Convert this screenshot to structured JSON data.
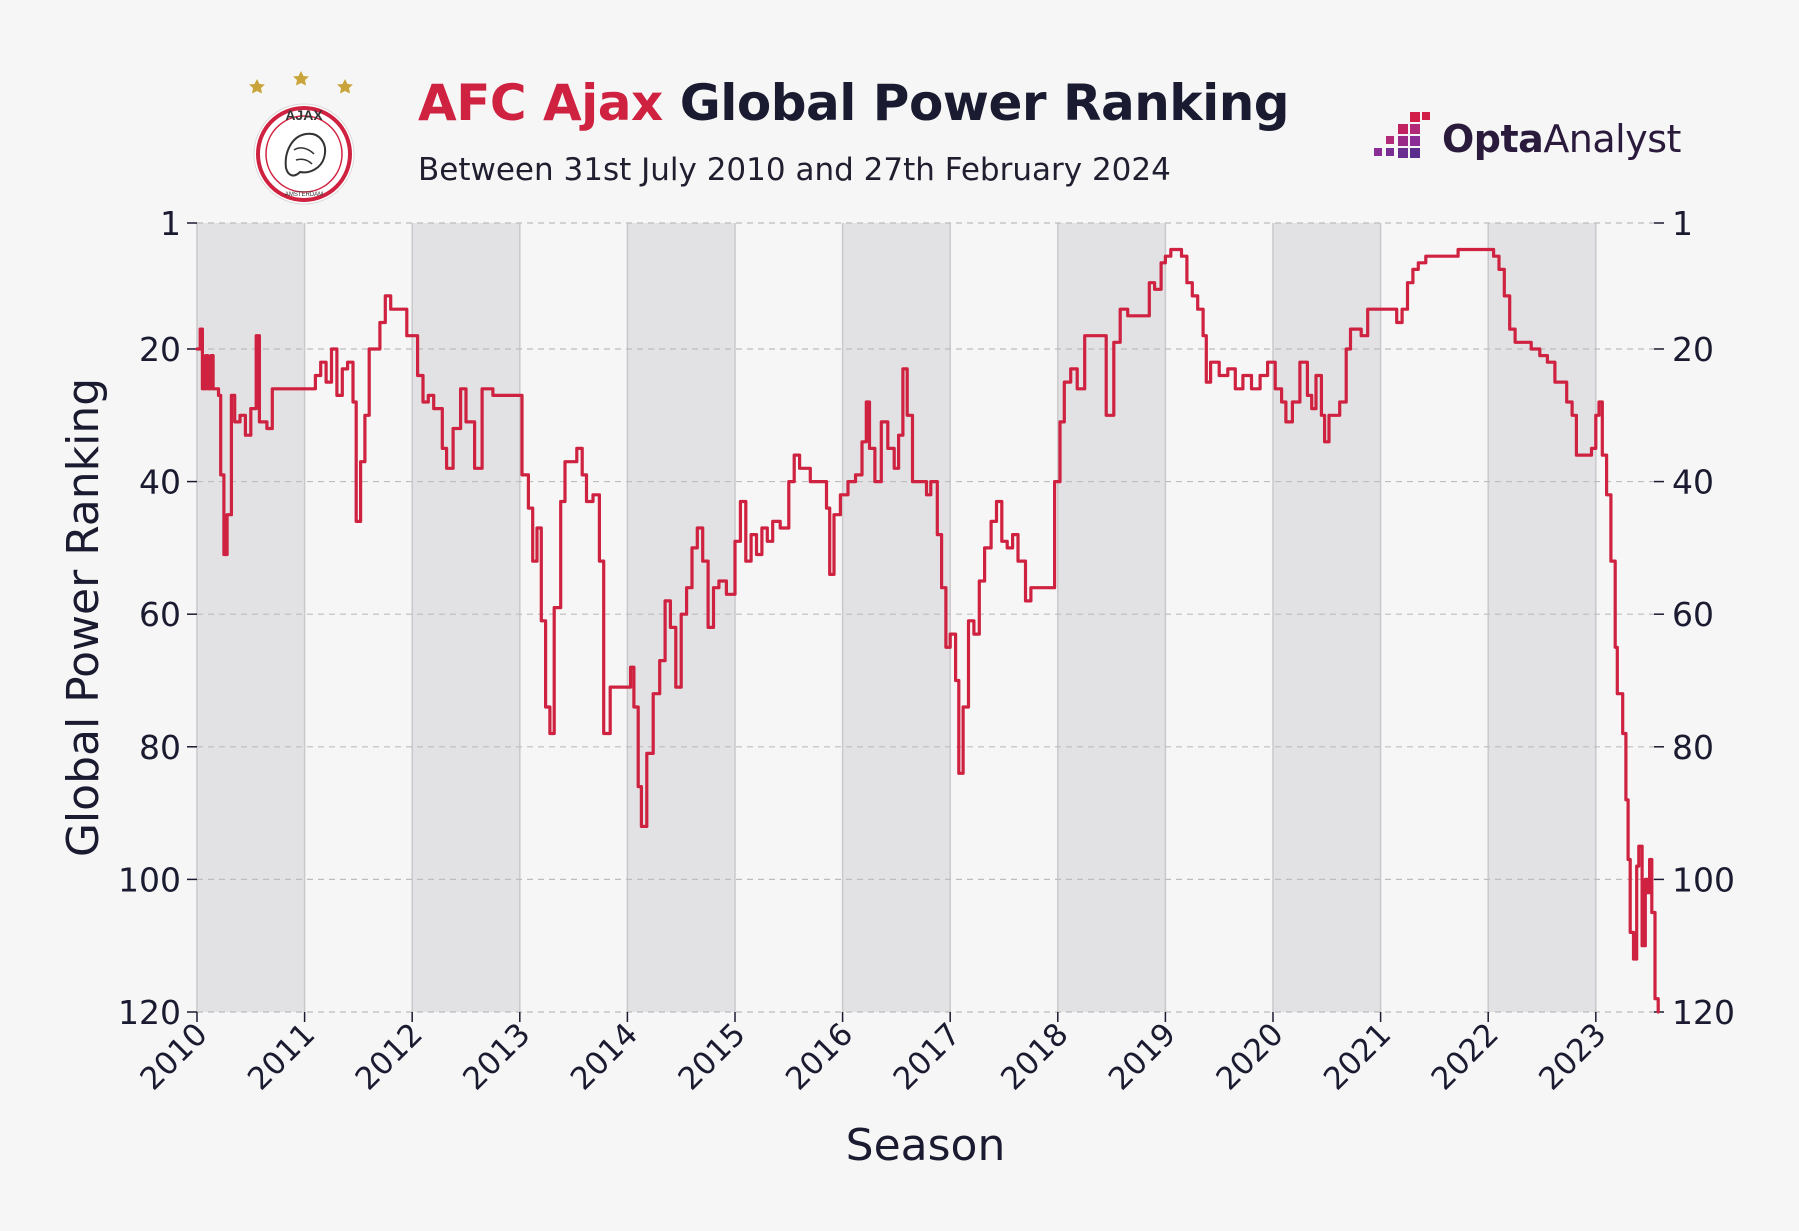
{
  "header": {
    "title_accent": "AFC Ajax",
    "title_rest": "Global Power Ranking",
    "subtitle": "Between 31st July 2010 and 27th February 2024"
  },
  "crest": {
    "name": "AJAX",
    "sub": "AMSTERDAM"
  },
  "brand": {
    "bold": "Opta",
    "light": "Analyst",
    "colors": [
      "#d11f4a",
      "#b02a78",
      "#8a2e96",
      "#5a2c8c"
    ]
  },
  "colors": {
    "line": "#cf2140",
    "band": "#e2e2e4",
    "text": "#1a1a30",
    "grid": "#bdbdbd",
    "background": "#f6f6f6"
  },
  "chart_data": {
    "type": "line",
    "title": "AFC Ajax Global Power Ranking",
    "subtitle": "Between 31st July 2010 and 27th February 2024",
    "xlabel": "Season",
    "ylabel": "Global Power Ranking",
    "xlim": [
      2010,
      2023.58
    ],
    "ylim": [
      120,
      1
    ],
    "y_inverted": true,
    "yticks": [
      1,
      20,
      40,
      60,
      80,
      100,
      120
    ],
    "ytick_labels": [
      "1",
      "20",
      "40",
      "60",
      "80",
      "100",
      "120"
    ],
    "xticks": [
      2010,
      2011,
      2012,
      2013,
      2014,
      2015,
      2016,
      2017,
      2018,
      2019,
      2020,
      2021,
      2022,
      2023
    ],
    "xtick_labels": [
      "2010",
      "2011",
      "2012",
      "2013",
      "2014",
      "2015",
      "2016",
      "2017",
      "2018",
      "2019",
      "2020",
      "2021",
      "2022",
      "2023"
    ],
    "shaded_seasons": [
      [
        2010,
        2011
      ],
      [
        2012,
        2013
      ],
      [
        2014,
        2015
      ],
      [
        2016,
        2017
      ],
      [
        2018,
        2019
      ],
      [
        2020,
        2021
      ],
      [
        2022,
        2023
      ]
    ],
    "grid": true,
    "series": [
      {
        "name": "AFC Ajax",
        "points": [
          [
            2010.0,
            20
          ],
          [
            2010.03,
            17
          ],
          [
            2010.05,
            26
          ],
          [
            2010.08,
            21
          ],
          [
            2010.1,
            26
          ],
          [
            2010.13,
            21
          ],
          [
            2010.15,
            26
          ],
          [
            2010.2,
            27
          ],
          [
            2010.22,
            39
          ],
          [
            2010.25,
            51
          ],
          [
            2010.28,
            45
          ],
          [
            2010.32,
            27
          ],
          [
            2010.35,
            31
          ],
          [
            2010.4,
            30
          ],
          [
            2010.45,
            33
          ],
          [
            2010.5,
            29
          ],
          [
            2010.55,
            18
          ],
          [
            2010.58,
            31
          ],
          [
            2010.65,
            32
          ],
          [
            2010.7,
            26
          ],
          [
            2010.8,
            26
          ],
          [
            2011.0,
            26
          ],
          [
            2011.1,
            24
          ],
          [
            2011.15,
            22
          ],
          [
            2011.2,
            25
          ],
          [
            2011.25,
            20
          ],
          [
            2011.3,
            27
          ],
          [
            2011.35,
            23
          ],
          [
            2011.4,
            22
          ],
          [
            2011.45,
            28
          ],
          [
            2011.48,
            46
          ],
          [
            2011.52,
            37
          ],
          [
            2011.56,
            30
          ],
          [
            2011.6,
            20
          ],
          [
            2011.7,
            16
          ],
          [
            2011.75,
            12
          ],
          [
            2011.8,
            14
          ],
          [
            2011.9,
            14
          ],
          [
            2011.95,
            18
          ],
          [
            2012.05,
            24
          ],
          [
            2012.1,
            28
          ],
          [
            2012.15,
            27
          ],
          [
            2012.2,
            29
          ],
          [
            2012.28,
            35
          ],
          [
            2012.32,
            38
          ],
          [
            2012.38,
            32
          ],
          [
            2012.45,
            26
          ],
          [
            2012.5,
            31
          ],
          [
            2012.58,
            38
          ],
          [
            2012.65,
            26
          ],
          [
            2012.75,
            27
          ],
          [
            2012.85,
            27
          ],
          [
            2012.95,
            27
          ],
          [
            2013.02,
            39
          ],
          [
            2013.08,
            44
          ],
          [
            2013.12,
            52
          ],
          [
            2013.16,
            47
          ],
          [
            2013.2,
            61
          ],
          [
            2013.24,
            74
          ],
          [
            2013.28,
            78
          ],
          [
            2013.32,
            59
          ],
          [
            2013.38,
            43
          ],
          [
            2013.42,
            37
          ],
          [
            2013.48,
            37
          ],
          [
            2013.53,
            35
          ],
          [
            2013.58,
            39
          ],
          [
            2013.62,
            43
          ],
          [
            2013.68,
            42
          ],
          [
            2013.74,
            52
          ],
          [
            2013.78,
            78
          ],
          [
            2013.84,
            71
          ],
          [
            2013.9,
            71
          ],
          [
            2013.95,
            71
          ],
          [
            2014.03,
            68
          ],
          [
            2014.06,
            74
          ],
          [
            2014.1,
            86
          ],
          [
            2014.13,
            92
          ],
          [
            2014.18,
            81
          ],
          [
            2014.24,
            72
          ],
          [
            2014.3,
            67
          ],
          [
            2014.35,
            58
          ],
          [
            2014.4,
            62
          ],
          [
            2014.45,
            71
          ],
          [
            2014.5,
            60
          ],
          [
            2014.55,
            56
          ],
          [
            2014.6,
            50
          ],
          [
            2014.65,
            47
          ],
          [
            2014.7,
            52
          ],
          [
            2014.75,
            62
          ],
          [
            2014.8,
            56
          ],
          [
            2014.85,
            55
          ],
          [
            2014.92,
            57
          ],
          [
            2015.0,
            49
          ],
          [
            2015.05,
            43
          ],
          [
            2015.1,
            52
          ],
          [
            2015.15,
            48
          ],
          [
            2015.2,
            51
          ],
          [
            2015.25,
            47
          ],
          [
            2015.3,
            49
          ],
          [
            2015.35,
            46
          ],
          [
            2015.42,
            47
          ],
          [
            2015.5,
            40
          ],
          [
            2015.55,
            36
          ],
          [
            2015.6,
            38
          ],
          [
            2015.7,
            40
          ],
          [
            2015.8,
            40
          ],
          [
            2015.85,
            44
          ],
          [
            2015.88,
            54
          ],
          [
            2015.92,
            45
          ],
          [
            2015.98,
            42
          ],
          [
            2016.05,
            40
          ],
          [
            2016.12,
            39
          ],
          [
            2016.18,
            34
          ],
          [
            2016.22,
            28
          ],
          [
            2016.25,
            35
          ],
          [
            2016.3,
            40
          ],
          [
            2016.36,
            31
          ],
          [
            2016.42,
            35
          ],
          [
            2016.48,
            38
          ],
          [
            2016.52,
            33
          ],
          [
            2016.56,
            23
          ],
          [
            2016.6,
            30
          ],
          [
            2016.65,
            40
          ],
          [
            2016.72,
            40
          ],
          [
            2016.78,
            42
          ],
          [
            2016.82,
            40
          ],
          [
            2016.88,
            48
          ],
          [
            2016.92,
            56
          ],
          [
            2016.96,
            65
          ],
          [
            2017.0,
            63
          ],
          [
            2017.05,
            70
          ],
          [
            2017.08,
            84
          ],
          [
            2017.12,
            74
          ],
          [
            2017.17,
            61
          ],
          [
            2017.22,
            63
          ],
          [
            2017.27,
            55
          ],
          [
            2017.32,
            50
          ],
          [
            2017.38,
            46
          ],
          [
            2017.43,
            43
          ],
          [
            2017.48,
            49
          ],
          [
            2017.53,
            50
          ],
          [
            2017.58,
            48
          ],
          [
            2017.63,
            52
          ],
          [
            2017.7,
            58
          ],
          [
            2017.75,
            56
          ],
          [
            2017.85,
            56
          ],
          [
            2017.92,
            56
          ],
          [
            2017.97,
            40
          ],
          [
            2018.02,
            31
          ],
          [
            2018.06,
            25
          ],
          [
            2018.12,
            23
          ],
          [
            2018.18,
            26
          ],
          [
            2018.25,
            18
          ],
          [
            2018.3,
            18
          ],
          [
            2018.38,
            18
          ],
          [
            2018.45,
            30
          ],
          [
            2018.52,
            19
          ],
          [
            2018.58,
            14
          ],
          [
            2018.65,
            15
          ],
          [
            2018.72,
            15
          ],
          [
            2018.8,
            15
          ],
          [
            2018.85,
            10
          ],
          [
            2018.9,
            11
          ],
          [
            2018.96,
            7
          ],
          [
            2019.0,
            6
          ],
          [
            2019.05,
            5
          ],
          [
            2019.1,
            5
          ],
          [
            2019.15,
            6
          ],
          [
            2019.2,
            10
          ],
          [
            2019.25,
            12
          ],
          [
            2019.3,
            14
          ],
          [
            2019.35,
            18
          ],
          [
            2019.38,
            25
          ],
          [
            2019.42,
            22
          ],
          [
            2019.5,
            24
          ],
          [
            2019.58,
            23
          ],
          [
            2019.65,
            26
          ],
          [
            2019.72,
            24
          ],
          [
            2019.8,
            26
          ],
          [
            2019.88,
            24
          ],
          [
            2019.95,
            22
          ],
          [
            2020.02,
            26
          ],
          [
            2020.08,
            28
          ],
          [
            2020.12,
            31
          ],
          [
            2020.18,
            28
          ],
          [
            2020.25,
            22
          ],
          [
            2020.32,
            27
          ],
          [
            2020.36,
            29
          ],
          [
            2020.4,
            24
          ],
          [
            2020.45,
            30
          ],
          [
            2020.48,
            34
          ],
          [
            2020.52,
            30
          ],
          [
            2020.58,
            30
          ],
          [
            2020.62,
            28
          ],
          [
            2020.68,
            20
          ],
          [
            2020.72,
            17
          ],
          [
            2020.76,
            17
          ],
          [
            2020.82,
            18
          ],
          [
            2020.88,
            14
          ],
          [
            2020.95,
            14
          ],
          [
            2021.05,
            14
          ],
          [
            2021.1,
            14
          ],
          [
            2021.15,
            16
          ],
          [
            2021.2,
            14
          ],
          [
            2021.25,
            10
          ],
          [
            2021.3,
            8
          ],
          [
            2021.35,
            7
          ],
          [
            2021.42,
            6
          ],
          [
            2021.5,
            6
          ],
          [
            2021.58,
            6
          ],
          [
            2021.65,
            6
          ],
          [
            2021.72,
            5
          ],
          [
            2021.8,
            5
          ],
          [
            2021.88,
            5
          ],
          [
            2021.95,
            5
          ],
          [
            2022.0,
            5
          ],
          [
            2022.05,
            6
          ],
          [
            2022.1,
            8
          ],
          [
            2022.15,
            12
          ],
          [
            2022.2,
            17
          ],
          [
            2022.25,
            19
          ],
          [
            2022.3,
            19
          ],
          [
            2022.4,
            20
          ],
          [
            2022.48,
            21
          ],
          [
            2022.55,
            22
          ],
          [
            2022.62,
            25
          ],
          [
            2022.68,
            25
          ],
          [
            2022.73,
            28
          ],
          [
            2022.78,
            30
          ],
          [
            2022.82,
            36
          ],
          [
            2022.9,
            36
          ],
          [
            2022.96,
            35
          ],
          [
            2023.0,
            30
          ],
          [
            2023.03,
            28
          ],
          [
            2023.06,
            36
          ],
          [
            2023.1,
            42
          ],
          [
            2023.14,
            52
          ],
          [
            2023.18,
            65
          ],
          [
            2023.2,
            72
          ],
          [
            2023.25,
            78
          ],
          [
            2023.28,
            88
          ],
          [
            2023.3,
            97
          ],
          [
            2023.32,
            108
          ],
          [
            2023.35,
            112
          ],
          [
            2023.38,
            98
          ],
          [
            2023.4,
            95
          ],
          [
            2023.43,
            110
          ],
          [
            2023.46,
            100
          ],
          [
            2023.48,
            102
          ],
          [
            2023.5,
            97
          ],
          [
            2023.52,
            105
          ],
          [
            2023.55,
            118
          ],
          [
            2023.58,
            120
          ]
        ]
      }
    ]
  }
}
